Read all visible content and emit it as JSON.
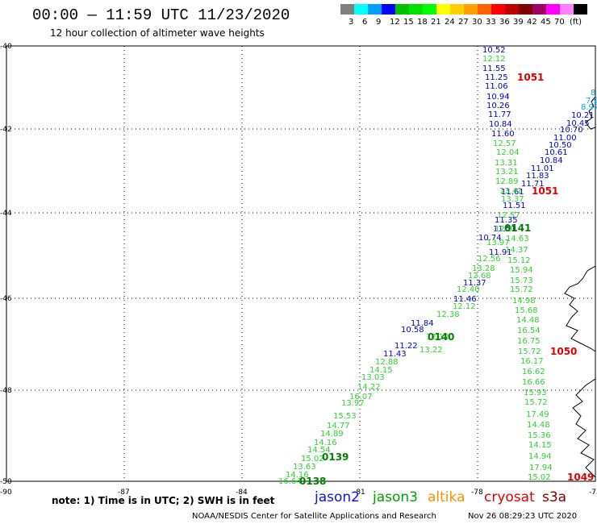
{
  "header": {
    "title": "00:00 — 11:59 UTC 11/23/2020",
    "subtitle": "12 hour collection of altimeter wave heights"
  },
  "legend": {
    "unit": "(ft)",
    "colors": [
      "#808080",
      "#00ffff",
      "#00a0ff",
      "#0000ff",
      "#00c000",
      "#00e000",
      "#00ff00",
      "#ffff00",
      "#ffd000",
      "#ffa000",
      "#ff6000",
      "#ff0000",
      "#c00000",
      "#800000",
      "#a00060",
      "#ff00ff",
      "#ff80ff",
      "#000000"
    ],
    "labels": [
      "3",
      "6",
      "9",
      "12",
      "15",
      "18",
      "21",
      "24",
      "27",
      "30",
      "33",
      "36",
      "39",
      "42",
      "45",
      "70"
    ]
  },
  "axes": {
    "x_ticks": [
      "-90",
      "-87",
      "-84",
      "-81",
      "-78",
      "-75"
    ],
    "y_ticks": [
      "-40",
      "-42",
      "-44",
      "-46",
      "-48",
      "-50"
    ]
  },
  "tracks": {
    "jason2_swh": [
      "10.52",
      "11.55",
      "11.25",
      "11.06",
      "10.94",
      "10.26",
      "11.77",
      "10.84",
      "11.60",
      "11.51",
      "11.35",
      "11.51",
      "10.74",
      "11.91",
      "11.37",
      "11.46",
      "11.84",
      "10.58",
      "11.22",
      "11.43"
    ],
    "jason2_diag": [
      "10.21",
      "10.45",
      "10.70",
      "11.00",
      "10.50",
      "10.61",
      "10.84",
      "11.01",
      "11.83",
      "11.71",
      "11.61"
    ],
    "jason3_swh": [
      "12.12",
      "12.57",
      "12.04",
      "13.31",
      "13.21",
      "12.89",
      "13.41",
      "13.37",
      "12.57",
      "12.91",
      "13.97",
      "12.56",
      "13.28",
      "12.68",
      "12.40",
      "12.12",
      "12.38",
      "12.12",
      "13.22",
      "12.88",
      "14.15",
      "13.03",
      "14.22",
      "16.07",
      "13.97",
      "15.53",
      "14.77",
      "14.89",
      "14.16",
      "14.54",
      "15.02",
      "13.63",
      "14.16",
      "16.64"
    ],
    "cryosat_swh": [
      "14.63",
      "14.37",
      "15.12",
      "15.94",
      "15.73",
      "15.72",
      "14.98",
      "15.68",
      "14.48",
      "16.54",
      "16.75",
      "15.72",
      "16.17",
      "16.62",
      "16.66",
      "15.93",
      "15.72",
      "17.49",
      "14.48",
      "15.36",
      "14.15",
      "14.94",
      "17.94",
      "15.02"
    ],
    "cyan_swh": [
      "8",
      "7.9",
      "8.97"
    ],
    "time_labels_green": [
      "0141",
      "0140",
      "0139",
      "0138"
    ],
    "pressure_labels": [
      "1051",
      "1051",
      "1050",
      "1049"
    ]
  },
  "footer": {
    "note": "note: 1) Time is in UTC; 2) SWH is in feet",
    "satellites": [
      {
        "name": "jason2",
        "color": "#1010e0"
      },
      {
        "name": "jason3",
        "color": "#00a000"
      },
      {
        "name": "altika",
        "color": "#ff9000"
      },
      {
        "name": "cryosat",
        "color": "#e00000"
      },
      {
        "name": "s3a",
        "color": "#800000"
      }
    ],
    "credit": "NOAA/NESDIS Center for Satellite Applications and Research",
    "timestamp": "Nov 26 08:29:23 UTC 2020"
  }
}
